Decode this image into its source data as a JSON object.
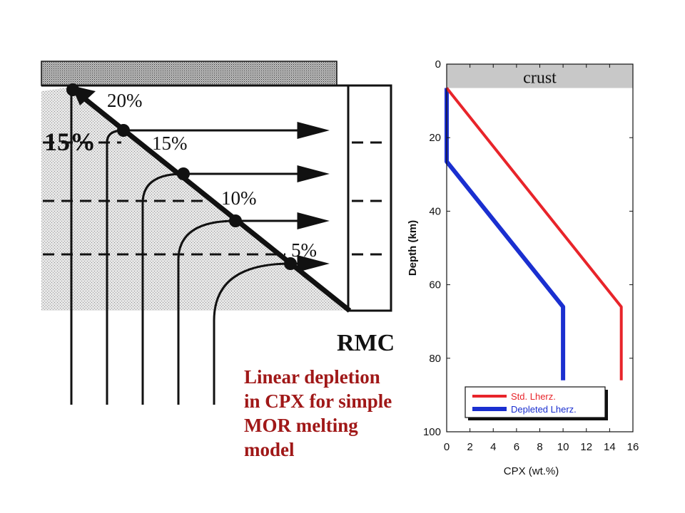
{
  "diagram": {
    "big_label": "15%",
    "melt_labels": [
      "20%",
      "15%",
      "10%",
      "5%"
    ],
    "rmc_label": "RMC"
  },
  "caption": {
    "lines": [
      "Linear depletion",
      "in CPX for simple",
      "MOR melting",
      "model"
    ]
  },
  "chart_data": {
    "type": "line",
    "title": "",
    "xlabel": "CPX (wt.%)",
    "ylabel": "Depth (km)",
    "xlim": [
      0,
      16
    ],
    "ylim": [
      100,
      0
    ],
    "x_ticks": [
      "0",
      "2",
      "4",
      "6",
      "8",
      "10",
      "12",
      "14",
      "16"
    ],
    "y_ticks": [
      "0",
      "20",
      "40",
      "60",
      "80",
      "100"
    ],
    "crust": {
      "label": "crust",
      "depth_range": [
        0,
        6.5
      ],
      "color": "#c8c8c8"
    },
    "series": [
      {
        "name": "Std. Lherz.",
        "color": "#e8242a",
        "points": [
          [
            0,
            6.5
          ],
          [
            15,
            66
          ],
          [
            15,
            86
          ]
        ]
      },
      {
        "name": "Depleted Lherz.",
        "color": "#1a2fd0",
        "points": [
          [
            0,
            6.5
          ],
          [
            0,
            26.5
          ],
          [
            10,
            66
          ],
          [
            10,
            86
          ]
        ]
      }
    ],
    "legend": "bottom"
  }
}
